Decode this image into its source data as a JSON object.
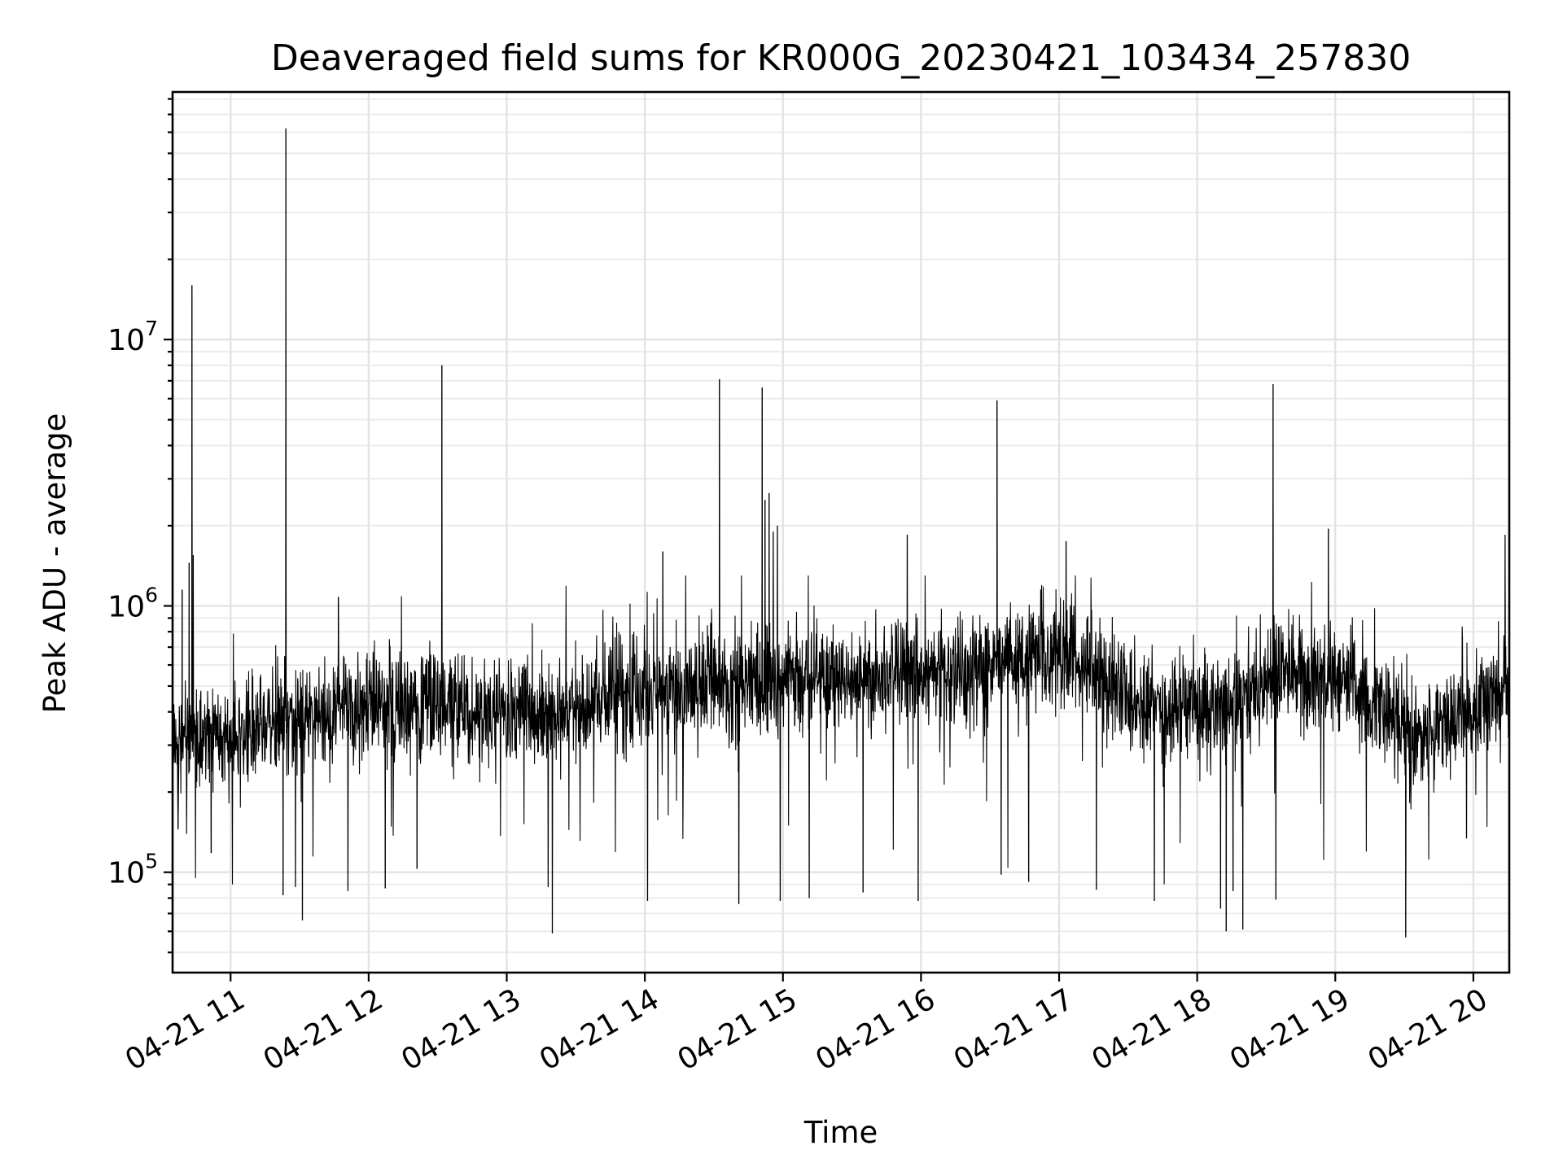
{
  "chart_data": {
    "type": "line",
    "title": "Deaveraged field sums for KR000G_20230421_103434_257830",
    "xlabel": "Time",
    "ylabel": "Peak ADU - average",
    "yscale": "log",
    "ylim": [
      42000,
      85000000
    ],
    "xlim_hours": [
      10.58,
      20.26
    ],
    "grid": true,
    "x_ticks": [
      {
        "hour": 11,
        "label": "04-21 11"
      },
      {
        "hour": 12,
        "label": "04-21 12"
      },
      {
        "hour": 13,
        "label": "04-21 13"
      },
      {
        "hour": 14,
        "label": "04-21 14"
      },
      {
        "hour": 15,
        "label": "04-21 15"
      },
      {
        "hour": 16,
        "label": "04-21 16"
      },
      {
        "hour": 17,
        "label": "04-21 17"
      },
      {
        "hour": 18,
        "label": "04-21 18"
      },
      {
        "hour": 19,
        "label": "04-21 19"
      },
      {
        "hour": 20,
        "label": "04-21 20"
      }
    ],
    "y_ticks": [
      {
        "value": 100000,
        "base": "10",
        "exp": "5"
      },
      {
        "value": 1000000,
        "base": "10",
        "exp": "6"
      },
      {
        "value": 10000000,
        "base": "10",
        "exp": "7"
      }
    ],
    "series": [
      {
        "name": "Peak ADU - average",
        "color": "#000000",
        "baseline": [
          [
            10.58,
            300000
          ],
          [
            10.9,
            320000
          ],
          [
            11.5,
            380000
          ],
          [
            12.0,
            420000
          ],
          [
            12.5,
            420000
          ],
          [
            13.0,
            400000
          ],
          [
            13.5,
            420000
          ],
          [
            14.0,
            480000
          ],
          [
            14.5,
            500000
          ],
          [
            15.0,
            520000
          ],
          [
            15.5,
            540000
          ],
          [
            16.0,
            540000
          ],
          [
            16.5,
            580000
          ],
          [
            17.0,
            650000
          ],
          [
            17.3,
            560000
          ],
          [
            17.6,
            420000
          ],
          [
            18.0,
            400000
          ],
          [
            18.4,
            470000
          ],
          [
            18.6,
            560000
          ],
          [
            19.0,
            540000
          ],
          [
            19.3,
            420000
          ],
          [
            19.6,
            320000
          ],
          [
            19.85,
            380000
          ],
          [
            20.26,
            520000
          ]
        ],
        "spikes": [
          {
            "hour": 10.65,
            "value": 1150000
          },
          {
            "hour": 10.7,
            "value": 1450000
          },
          {
            "hour": 10.72,
            "value": 16000000
          },
          {
            "hour": 10.73,
            "value": 1550000
          },
          {
            "hour": 11.4,
            "value": 62000000
          },
          {
            "hour": 11.78,
            "value": 1080000
          },
          {
            "hour": 12.53,
            "value": 8000000
          },
          {
            "hour": 14.13,
            "value": 1600000
          },
          {
            "hour": 14.54,
            "value": 7100000
          },
          {
            "hour": 14.85,
            "value": 6600000
          },
          {
            "hour": 14.87,
            "value": 2500000
          },
          {
            "hour": 14.9,
            "value": 2650000
          },
          {
            "hour": 14.93,
            "value": 1900000
          },
          {
            "hour": 14.96,
            "value": 2000000
          },
          {
            "hour": 15.9,
            "value": 1850000
          },
          {
            "hour": 16.55,
            "value": 5900000
          },
          {
            "hour": 17.05,
            "value": 1750000
          },
          {
            "hour": 18.55,
            "value": 6800000
          },
          {
            "hour": 18.95,
            "value": 1950000
          },
          {
            "hour": 20.23,
            "value": 1850000
          }
        ],
        "dips": [
          {
            "hour": 10.62,
            "value": 145000
          },
          {
            "hour": 10.86,
            "value": 118000
          },
          {
            "hour": 11.38,
            "value": 82000
          },
          {
            "hour": 11.47,
            "value": 88000
          },
          {
            "hour": 11.52,
            "value": 66000
          },
          {
            "hour": 11.85,
            "value": 85000
          },
          {
            "hour": 12.12,
            "value": 87000
          },
          {
            "hour": 12.35,
            "value": 103000
          },
          {
            "hour": 13.3,
            "value": 88000
          },
          {
            "hour": 13.33,
            "value": 59000
          },
          {
            "hour": 14.02,
            "value": 78000
          },
          {
            "hour": 14.68,
            "value": 76000
          },
          {
            "hour": 14.98,
            "value": 78000
          },
          {
            "hour": 15.19,
            "value": 80000
          },
          {
            "hour": 15.58,
            "value": 84000
          },
          {
            "hour": 15.98,
            "value": 78000
          },
          {
            "hour": 16.58,
            "value": 98000
          },
          {
            "hour": 16.78,
            "value": 92000
          },
          {
            "hour": 17.27,
            "value": 86000
          },
          {
            "hour": 17.69,
            "value": 78000
          },
          {
            "hour": 18.17,
            "value": 73000
          },
          {
            "hour": 18.21,
            "value": 60000
          },
          {
            "hour": 18.26,
            "value": 85000
          },
          {
            "hour": 18.33,
            "value": 61000
          },
          {
            "hour": 18.57,
            "value": 79000
          },
          {
            "hour": 19.51,
            "value": 57000
          },
          {
            "hour": 19.95,
            "value": 134000
          }
        ]
      }
    ]
  }
}
